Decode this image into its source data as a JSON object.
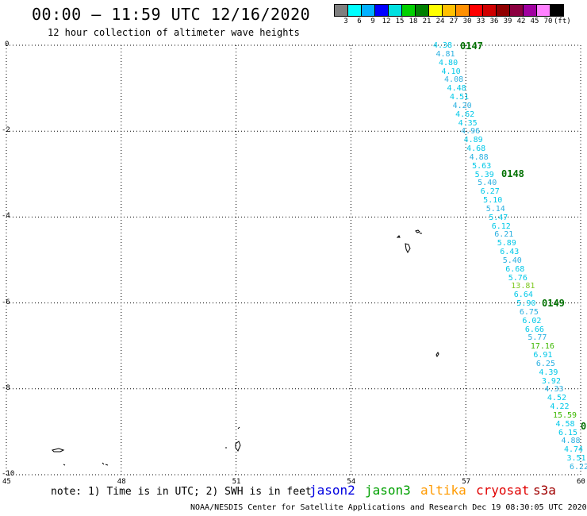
{
  "header": {
    "title": "00:00 – 11:59 UTC 12/16/2020",
    "subtitle": "12 hour collection of altimeter wave heights"
  },
  "colorbar": {
    "colors": [
      "#7f7f7f",
      "#00ffff",
      "#00b0ff",
      "#0000ff",
      "#00e0e0",
      "#00d000",
      "#008000",
      "#ffff00",
      "#ffc000",
      "#ff9000",
      "#ff0000",
      "#d00000",
      "#900000",
      "#8b0040",
      "#a000a0",
      "#ff80ff",
      "#000000"
    ],
    "labels": [
      "3",
      "6",
      "9",
      "12",
      "15",
      "18",
      "21",
      "24",
      "27",
      "30",
      "33",
      "36",
      "39",
      "42",
      "45",
      "70",
      "(ft)"
    ]
  },
  "axes": {
    "y_ticks": [
      "0",
      "-2",
      "-4",
      "-6",
      "-8",
      "-10"
    ],
    "x_ticks": [
      "45",
      "48",
      "51",
      "54",
      "57",
      "60"
    ]
  },
  "passes": [
    "0147",
    "0148",
    "0149",
    "0"
  ],
  "track_values": [
    "4.38",
    "4.81",
    "4.80",
    "4.10",
    "4.08",
    "4.48",
    "4.51",
    "4.20",
    "4.62",
    "4.35",
    "4.96",
    "4.89",
    "4.68",
    "4.88",
    "5.63",
    "5.39",
    "5.40",
    "6.27",
    "5.10",
    "5.14",
    "5.47",
    "6.12",
    "6.21",
    "5.89",
    "6.43",
    "5.40",
    "6.68",
    "5.76",
    "13.81",
    "6.64",
    "5.90",
    "6.75",
    "6.02",
    "6.66",
    "5.77",
    "17.16",
    "6.91",
    "6.25",
    "4.39",
    "3.92",
    "4.33",
    "4.52",
    "4.22",
    "15.59",
    "4.58",
    "6.15",
    "4.88",
    "4.74",
    "3.51",
    "6.22"
  ],
  "track_colors": {
    "normal": "#00c8e8",
    "alt1": "#2ab0e0",
    "high": "#7ec820",
    "higher": "#3cb800"
  },
  "note": "note: 1) Time is in UTC; 2) SWH is in feet",
  "legend": [
    {
      "label": "jason2",
      "color": "#0000e0"
    },
    {
      "label": "jason3",
      "color": "#00a000"
    },
    {
      "label": "altika",
      "color": "#ff9a00"
    },
    {
      "label": "cryosat",
      "color": "#e00000"
    },
    {
      "label": "s3a",
      "color": "#a00000"
    }
  ],
  "footer": "NOAA/NESDIS Center for Satellite Applications and Research    Dec 19 08:30:05 UTC 2020"
}
